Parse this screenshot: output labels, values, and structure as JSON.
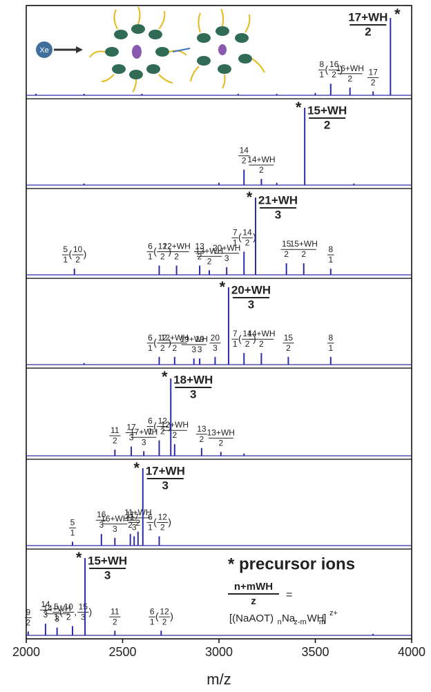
{
  "chart_data": {
    "type": "stacked-spectra",
    "xlabel": "m/z",
    "xlim": [
      2000,
      4000
    ],
    "xticks": [
      2000,
      2500,
      3000,
      3500,
      4000
    ],
    "color": "#2b2ba6",
    "illustration_label": "Xe",
    "panels": [
      {
        "x": [
          2050,
          2300,
          2600,
          3100,
          3300,
          3500,
          3580,
          3680,
          3800,
          3890
        ],
        "values": [
          2,
          2,
          2,
          2,
          2,
          3,
          15,
          10,
          5,
          100
        ],
        "labels": [
          null,
          null,
          null,
          null,
          null,
          null,
          {
            "tokens": [
              [
                "8",
                "1"
              ],
              "(",
              [
                "16",
                "2"
              ],
              ")"
            ]
          },
          {
            "tokens": [
              [
                "16+WH",
                "2"
              ]
            ]
          },
          {
            "tokens": [
              [
                "17",
                "2"
              ]
            ]
          },
          {
            "tokens": [
              [
                "17+WH",
                "2"
              ]
            ],
            "marker": "*"
          }
        ]
      },
      {
        "x": [
          2300,
          3000,
          3130,
          3220,
          3300,
          3445,
          3700
        ],
        "values": [
          2,
          3,
          20,
          8,
          3,
          100,
          2
        ],
        "labels": [
          null,
          null,
          {
            "tokens": [
              [
                "14",
                "2"
              ]
            ]
          },
          {
            "tokens": [
              [
                "14+WH",
                "2"
              ]
            ]
          },
          null,
          {
            "tokens": [
              [
                "15+WH",
                "2"
              ]
            ],
            "marker": "*"
          },
          null
        ]
      },
      {
        "x": [
          2250,
          2690,
          2780,
          2900,
          2950,
          3040,
          3130,
          3190,
          3350,
          3440,
          3580
        ],
        "values": [
          8,
          12,
          12,
          12,
          6,
          10,
          30,
          100,
          15,
          15,
          8
        ],
        "labels": [
          {
            "tokens": [
              [
                "5",
                "1"
              ],
              "(",
              [
                "10",
                "2"
              ],
              ")"
            ]
          },
          {
            "tokens": [
              [
                "6",
                "1"
              ],
              "(",
              [
                "12",
                "2"
              ],
              ")"
            ]
          },
          {
            "tokens": [
              [
                "12+WH",
                "2"
              ]
            ]
          },
          {
            "tokens": [
              [
                "13",
                "2"
              ]
            ]
          },
          {
            "tokens": [
              [
                "13+WH",
                "2"
              ]
            ]
          },
          {
            "tokens": [
              [
                "20+WH",
                "3"
              ]
            ]
          },
          {
            "tokens": [
              [
                "7",
                "1"
              ],
              "(",
              [
                "14",
                "2"
              ],
              ")"
            ]
          },
          {
            "tokens": [
              [
                "21+WH",
                "3"
              ]
            ],
            "marker": "*"
          },
          {
            "tokens": [
              [
                "15",
                "2"
              ]
            ]
          },
          {
            "tokens": [
              [
                "15+WH",
                "2"
              ]
            ]
          },
          {
            "tokens": [
              [
                "8",
                "1"
              ]
            ]
          }
        ]
      },
      {
        "x": [
          2300,
          2690,
          2770,
          2870,
          2900,
          2980,
          3050,
          3130,
          3220,
          3360,
          3580
        ],
        "values": [
          2,
          10,
          10,
          8,
          8,
          10,
          100,
          15,
          15,
          10,
          10
        ],
        "labels": [
          null,
          {
            "tokens": [
              [
                "6",
                "1"
              ],
              "(",
              [
                "12",
                "2"
              ],
              ")"
            ]
          },
          {
            "tokens": [
              [
                "12+WH",
                "2"
              ]
            ]
          },
          {
            "tokens": [
              [
                "19+WH",
                "3"
              ]
            ]
          },
          {
            "tokens": [
              [
                "19",
                "3"
              ]
            ]
          },
          {
            "tokens": [
              [
                "20",
                "3"
              ]
            ]
          },
          {
            "tokens": [
              [
                "20+WH",
                "3"
              ]
            ],
            "marker": "*"
          },
          {
            "tokens": [
              [
                "7",
                "1"
              ],
              "(",
              [
                "14",
                "2"
              ],
              ")"
            ]
          },
          {
            "tokens": [
              [
                "14+WH",
                "2"
              ]
            ]
          },
          {
            "tokens": [
              [
                "15",
                "2"
              ]
            ]
          },
          {
            "tokens": [
              [
                "8",
                "1"
              ]
            ]
          }
        ]
      },
      {
        "x": [
          2460,
          2545,
          2610,
          2690,
          2750,
          2770,
          2910,
          3010,
          3130
        ],
        "values": [
          8,
          12,
          6,
          20,
          100,
          15,
          10,
          5,
          3
        ],
        "labels": [
          {
            "tokens": [
              [
                "11",
                "2"
              ]
            ]
          },
          {
            "tokens": [
              [
                "17",
                "3"
              ]
            ]
          },
          {
            "tokens": [
              [
                "17+WH",
                "3"
              ]
            ]
          },
          {
            "tokens": [
              [
                "6",
                "1"
              ],
              "(",
              [
                "12",
                "2"
              ],
              ")"
            ]
          },
          {
            "tokens": [
              [
                "18+WH",
                "3"
              ]
            ],
            "marker": "*"
          },
          {
            "tokens": [
              [
                "12+WH",
                "2"
              ]
            ]
          },
          {
            "tokens": [
              [
                "13",
                "2"
              ]
            ]
          },
          {
            "tokens": [
              [
                "13+WH",
                "2"
              ]
            ]
          },
          null
        ]
      },
      {
        "x": [
          2240,
          2390,
          2460,
          2540,
          2560,
          2580,
          2605,
          2690
        ],
        "values": [
          5,
          15,
          10,
          15,
          12,
          18,
          100,
          12
        ],
        "labels": [
          {
            "tokens": [
              [
                "5",
                "1"
              ]
            ]
          },
          {
            "tokens": [
              [
                "16",
                "3"
              ]
            ]
          },
          {
            "tokens": [
              [
                "16+WH",
                "3"
              ]
            ]
          },
          {
            "tokens": [
              [
                "11",
                "2"
              ]
            ]
          },
          {
            "tokens": [
              [
                "17",
                "3"
              ]
            ]
          },
          {
            "tokens": [
              [
                "11+WH",
                "2"
              ]
            ]
          },
          {
            "tokens": [
              [
                "17+WH",
                "3"
              ]
            ],
            "marker": "*"
          },
          {
            "tokens": [
              [
                "6",
                "1"
              ],
              "(",
              [
                "12",
                "2"
              ],
              ")"
            ]
          }
        ]
      },
      {
        "x": [
          2010,
          2100,
          2160,
          2240,
          2305,
          2460,
          2700,
          3800
        ],
        "values": [
          5,
          15,
          10,
          12,
          100,
          6,
          6,
          2
        ],
        "labels": [
          {
            "tokens": [
              [
                "9",
                "2"
              ]
            ]
          },
          {
            "tokens": [
              [
                "14",
                "3"
              ]
            ]
          },
          {
            "tokens": [
              [
                "14+WH",
                "3"
              ]
            ]
          },
          {
            "tokens": [
              [
                "5",
                "1"
              ],
              "(",
              [
                "10",
                "2"
              ],
              ",",
              [
                "15",
                "3"
              ],
              ")"
            ]
          },
          {
            "tokens": [
              [
                "15+WH",
                "3"
              ]
            ],
            "marker": "*"
          },
          {
            "tokens": [
              [
                "11",
                "2"
              ]
            ]
          },
          {
            "tokens": [
              [
                "6",
                "1"
              ],
              "(",
              [
                "12",
                "2"
              ],
              ")"
            ]
          },
          null
        ]
      }
    ],
    "note": {
      "title": "* precursor ions",
      "formula": [
        "n+mWH",
        "z"
      ],
      "equals": "=",
      "expression": [
        {
          "text": "[(NaAOT)"
        },
        {
          "text": "n",
          "sub": true
        },
        {
          "text": "Na"
        },
        {
          "text": "z-m",
          "sub": true
        },
        {
          "text": "WH"
        },
        {
          "text": "m",
          "sub": true
        },
        {
          "text": "]"
        },
        {
          "text": "z+",
          "sup": true
        }
      ]
    }
  }
}
